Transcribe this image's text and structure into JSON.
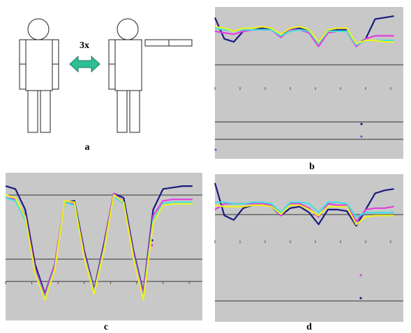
{
  "figure": {
    "arrow_label": "3x",
    "panel_label": "a"
  },
  "chart_data": [
    {
      "type": "line",
      "label": "b",
      "xlim": [
        0,
        100
      ],
      "ylim": [
        0,
        100
      ],
      "x": [
        0,
        5,
        10,
        15,
        20,
        25,
        30,
        35,
        40,
        45,
        50,
        55,
        60,
        65,
        70,
        75,
        80,
        85,
        90,
        95
      ],
      "series": [
        {
          "color": "#1a1a80",
          "values": [
            93,
            79,
            77,
            84,
            85,
            86,
            86,
            81,
            85,
            86,
            84,
            77,
            85,
            85,
            85,
            75,
            79,
            92,
            93,
            94
          ]
        },
        {
          "color": "#e040e0",
          "values": [
            84,
            83,
            82,
            84,
            85,
            85,
            85,
            80,
            85,
            85,
            83,
            74,
            83,
            84,
            84,
            74,
            79,
            81,
            81,
            81
          ]
        },
        {
          "color": "#40e0e0",
          "values": [
            86,
            85,
            84,
            85,
            85,
            85,
            85,
            81,
            84,
            85,
            84,
            76,
            84,
            84,
            84,
            75,
            78,
            78,
            78,
            78
          ]
        },
        {
          "color": "#f0f020",
          "values": [
            87,
            86,
            84,
            86,
            86,
            87,
            86,
            82,
            86,
            87,
            85,
            77,
            85,
            86,
            86,
            76,
            78,
            78,
            77,
            77
          ]
        }
      ]
    },
    {
      "type": "line",
      "label": "c",
      "xlim": [
        0,
        100
      ],
      "ylim": [
        0,
        100
      ],
      "x": [
        0,
        5,
        10,
        15,
        20,
        25,
        30,
        35,
        40,
        45,
        50,
        55,
        60,
        65,
        70,
        75,
        80,
        85,
        90,
        95
      ],
      "series": [
        {
          "color": "#1a1a80",
          "values": [
            91,
            89,
            75,
            38,
            18,
            38,
            80,
            81,
            47,
            21,
            52,
            86,
            83,
            47,
            19,
            75,
            89,
            90,
            91,
            91
          ]
        },
        {
          "color": "#e040e0",
          "values": [
            83,
            82,
            71,
            35,
            17,
            38,
            81,
            79,
            45,
            20,
            50,
            86,
            80,
            45,
            18,
            71,
            81,
            82,
            82,
            82
          ]
        },
        {
          "color": "#40e0e0",
          "values": [
            83,
            81,
            68,
            33,
            15,
            35,
            80,
            78,
            43,
            19,
            48,
            84,
            79,
            43,
            15,
            68,
            79,
            80,
            80,
            80
          ]
        },
        {
          "color": "#f0f020",
          "values": [
            85,
            83,
            70,
            32,
            14,
            34,
            81,
            80,
            42,
            18,
            47,
            85,
            80,
            42,
            14,
            66,
            78,
            79,
            79,
            79
          ]
        }
      ]
    },
    {
      "type": "line",
      "label": "d",
      "xlim": [
        0,
        100
      ],
      "ylim": [
        0,
        100
      ],
      "x": [
        0,
        5,
        10,
        15,
        20,
        25,
        30,
        35,
        40,
        45,
        50,
        55,
        60,
        65,
        70,
        75,
        80,
        85,
        90,
        95
      ],
      "series": [
        {
          "color": "#1a1a80",
          "values": [
            94,
            72,
            69,
            77,
            79,
            80,
            78,
            72,
            77,
            78,
            74,
            66,
            76,
            76,
            75,
            65,
            76,
            87,
            89,
            90
          ]
        },
        {
          "color": "#e040e0",
          "values": [
            76,
            80,
            80,
            80,
            80,
            80,
            79,
            72,
            80,
            80,
            77,
            71,
            80,
            79,
            79,
            68,
            76,
            77,
            77,
            78
          ]
        },
        {
          "color": "#40e0e0",
          "values": [
            81,
            81,
            80,
            80,
            81,
            81,
            80,
            74,
            81,
            81,
            80,
            74,
            81,
            81,
            80,
            71,
            74,
            74,
            74,
            74
          ]
        },
        {
          "color": "#f0f020",
          "values": [
            79,
            78,
            78,
            78,
            79,
            79,
            78,
            73,
            79,
            79,
            76,
            72,
            78,
            78,
            78,
            66,
            71,
            72,
            72,
            72
          ]
        }
      ]
    }
  ]
}
